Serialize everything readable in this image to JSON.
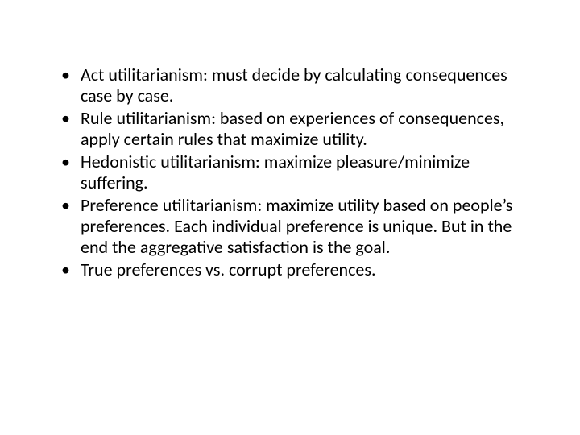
{
  "slide": {
    "background_color": "#ffffff",
    "text_color": "#000000",
    "font_family": "Calibri",
    "bullet_fontsize": 22,
    "bullets": [
      "Act utilitarianism: must decide by calculating consequences case by case.",
      "Rule utilitarianism: based on experiences of consequences, apply certain rules that maximize utility.",
      "Hedonistic utilitarianism: maximize pleasure/minimize suffering.",
      "Preference utilitarianism: maximize utility based on people’s preferences. Each individual preference is unique. But in the end the aggregative satisfaction is the goal.",
      "True preferences vs. corrupt preferences."
    ]
  }
}
